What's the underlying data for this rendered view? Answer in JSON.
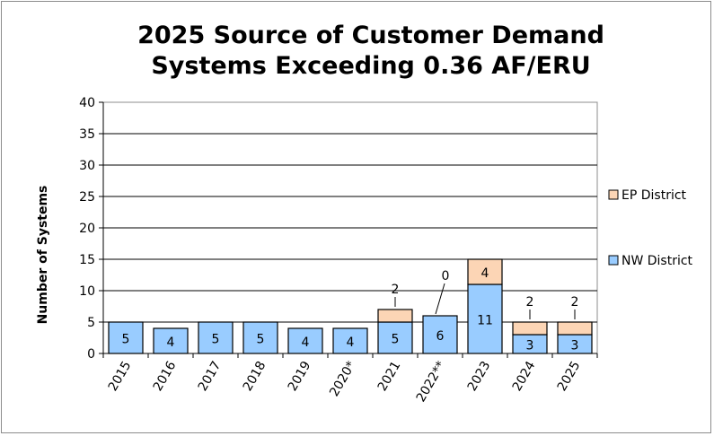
{
  "chart_data": {
    "type": "bar",
    "stacked": true,
    "title_lines": [
      "2025 Source of Customer Demand",
      "Systems Exceeding 0.36 AF/ERU"
    ],
    "xlabel": "",
    "ylabel": "Number of Systems",
    "ylim": [
      0,
      40
    ],
    "yticks": [
      0,
      5,
      10,
      15,
      20,
      25,
      30,
      35,
      40
    ],
    "grid": "horizontal",
    "legend_position": "right",
    "categories": [
      "2015",
      "2016",
      "2017",
      "2018",
      "2019",
      "2020*",
      "2021",
      "2022**",
      "2023",
      "2024",
      "2025"
    ],
    "series": [
      {
        "name": "NW District",
        "color": "#99ccff",
        "values": [
          5,
          4,
          5,
          5,
          4,
          4,
          5,
          6,
          11,
          3,
          3
        ],
        "labels": [
          "5",
          "4",
          "5",
          "5",
          "4",
          "4",
          "5",
          "6",
          "11",
          "3",
          "3"
        ]
      },
      {
        "name": "EP District",
        "color": "#fcd5b5",
        "values": [
          null,
          null,
          null,
          null,
          null,
          null,
          2,
          0,
          4,
          2,
          2
        ],
        "labels": [
          null,
          null,
          null,
          null,
          null,
          null,
          "2",
          "0",
          "4",
          "2",
          "2"
        ]
      }
    ],
    "legend_order": [
      "EP District",
      "NW District"
    ]
  }
}
